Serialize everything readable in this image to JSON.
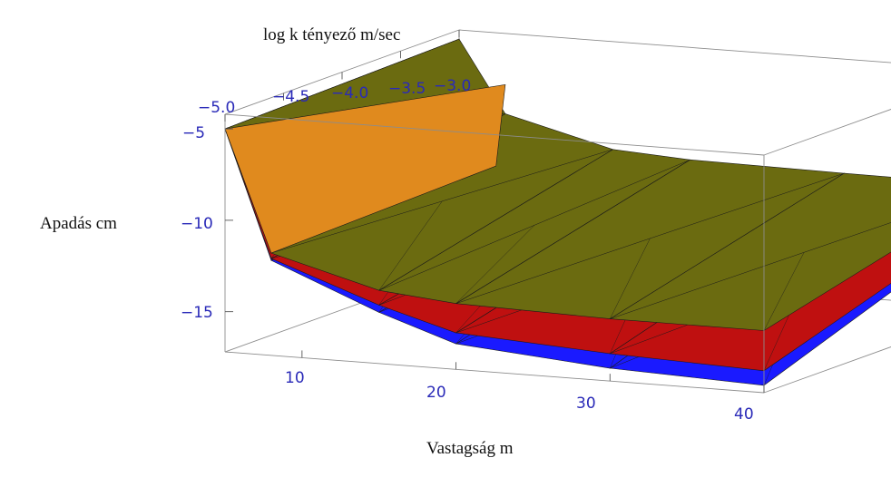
{
  "chart_data": {
    "type": "surface3d",
    "title": "",
    "xlabel": "Vastagság m",
    "ylabel": "log k tényező m/sec",
    "zlabel": "Apadás cm",
    "xlim": [
      5,
      40
    ],
    "ylim": [
      -5.0,
      -3.0
    ],
    "zlim": [
      -17.2,
      -4.2
    ],
    "x_ticks": [
      "10",
      "20",
      "30",
      "40"
    ],
    "y_ticks": [
      "−5.0",
      "−4.5",
      "−4.0",
      "−3.5",
      "−3.0"
    ],
    "z_ticks": [
      "−5",
      "−10",
      "−15"
    ],
    "x": [
      5,
      8,
      15,
      20,
      30,
      40
    ],
    "surfaces": [
      {
        "color": "#1a1aff",
        "back": [
          -4.7,
          -10.5,
          -11.5,
          -12.0,
          -12.0,
          -12.0
        ],
        "front": [
          -5.0,
          -12.0,
          -14.4,
          -15.8,
          -16.5,
          -16.8
        ]
      },
      {
        "color": "#bf1010",
        "back": [
          -4.7,
          -10.4,
          -11.3,
          -11.8,
          -11.8,
          -11.8
        ],
        "front": [
          -5.0,
          -11.9,
          -14.0,
          -15.2,
          -15.7,
          -16.0
        ]
      },
      {
        "color": "#6b6b10",
        "back": [
          -4.7,
          -8.6,
          -10.1,
          -10.35,
          -10.45,
          -10.5
        ],
        "front": [
          -5.0,
          -11.6,
          -13.2,
          -13.6,
          -13.8,
          -13.8
        ]
      }
    ],
    "grid": false,
    "legend": "none"
  }
}
